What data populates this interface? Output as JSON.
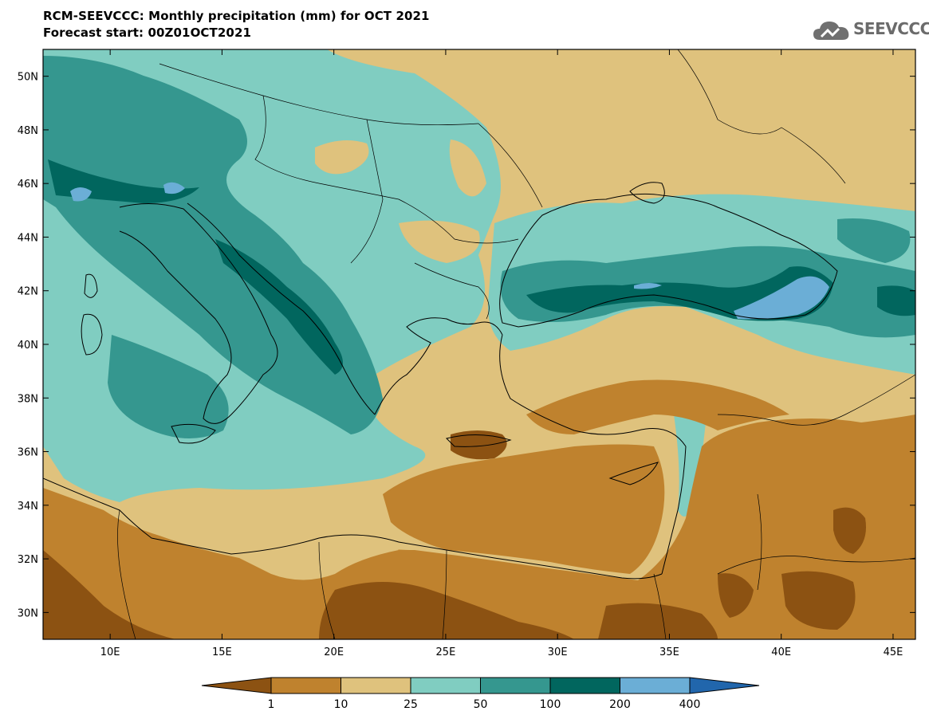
{
  "header": {
    "title": "RCM-SEEVCCC: Monthly precipitation (mm) for OCT 2021",
    "subtitle": "Forecast start: 00Z01OCT2021",
    "logo_text": "SEEVCCC",
    "logo_icon": "cloud-icon"
  },
  "map": {
    "lon_range": [
      7,
      46
    ],
    "lat_range": [
      29,
      51
    ],
    "lat_ticks": [
      {
        "value": 30,
        "label": "30N"
      },
      {
        "value": 32,
        "label": "32N"
      },
      {
        "value": 34,
        "label": "34N"
      },
      {
        "value": 36,
        "label": "36N"
      },
      {
        "value": 38,
        "label": "38N"
      },
      {
        "value": 40,
        "label": "40N"
      },
      {
        "value": 42,
        "label": "42N"
      },
      {
        "value": 44,
        "label": "44N"
      },
      {
        "value": 46,
        "label": "46N"
      },
      {
        "value": 48,
        "label": "48N"
      },
      {
        "value": 50,
        "label": "50N"
      }
    ],
    "lon_ticks": [
      {
        "value": 10,
        "label": "10E"
      },
      {
        "value": 15,
        "label": "15E"
      },
      {
        "value": 20,
        "label": "20E"
      },
      {
        "value": 25,
        "label": "25E"
      },
      {
        "value": 30,
        "label": "30E"
      },
      {
        "value": 35,
        "label": "35E"
      },
      {
        "value": 40,
        "label": "40E"
      },
      {
        "value": 45,
        "label": "45E"
      }
    ]
  },
  "colorbar": {
    "unit": "mm",
    "colors": [
      "#8c5212",
      "#bf822e",
      "#dfc27d",
      "#80cdc1",
      "#35978f",
      "#01665e",
      "#6baed6",
      "#2166ac"
    ],
    "labels": [
      "1",
      "10",
      "25",
      "50",
      "100",
      "200",
      "400"
    ]
  }
}
